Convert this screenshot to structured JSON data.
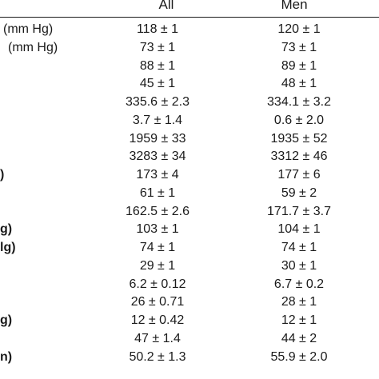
{
  "table": {
    "columns": {
      "all": "All",
      "men": "Men"
    },
    "rows": [
      {
        "label": "(mm Hg)",
        "label_indent": 4,
        "all": "118 ± 1",
        "men": "120 ± 1"
      },
      {
        "label": "(mm Hg)",
        "label_indent": 10,
        "all": "73 ± 1",
        "men": "73 ± 1"
      },
      {
        "label": "",
        "label_indent": 0,
        "all": "88 ± 1",
        "men": "89 ± 1"
      },
      {
        "label": "",
        "label_indent": 0,
        "all": "45 ± 1",
        "men": "48 ± 1"
      },
      {
        "label": "",
        "label_indent": 0,
        "all": "335.6 ± 2.3",
        "men": "334.1 ± 3.2"
      },
      {
        "label": "",
        "label_indent": 0,
        "all": "3.7 ± 1.4",
        "men": "0.6 ± 2.0"
      },
      {
        "label": "",
        "label_indent": 0,
        "all": "1959 ± 33",
        "men": "1935 ± 52"
      },
      {
        "label": "",
        "label_indent": 0,
        "all": "3283 ± 34",
        "men": "3312 ± 46"
      },
      {
        "label": ")",
        "label_indent": 0,
        "all": "173 ± 4",
        "men": "177 ± 6"
      },
      {
        "label": "",
        "label_indent": 0,
        "all": "61 ± 1",
        "men": "59 ± 2"
      },
      {
        "label": "",
        "label_indent": 0,
        "all": "162.5 ± 2.6",
        "men": "171.7 ± 3.7"
      },
      {
        "label": "g)",
        "label_indent": 0,
        "all": "103 ± 1",
        "men": "104 ± 1"
      },
      {
        "label": "lg)",
        "label_indent": 0,
        "all": "74 ± 1",
        "men": "74 ± 1"
      },
      {
        "label": "",
        "label_indent": 0,
        "all": "29 ± 1",
        "men": "30 ± 1"
      },
      {
        "label": "",
        "label_indent": 0,
        "all": "6.2 ± 0.12",
        "men": "6.7 ± 0.2"
      },
      {
        "label": "",
        "label_indent": 0,
        "all": "26 ± 0.71",
        "men": "28 ± 1"
      },
      {
        "label": "g)",
        "label_indent": 0,
        "all": "12 ± 0.42",
        "men": "12 ± 1"
      },
      {
        "label": "",
        "label_indent": 0,
        "all": "47 ± 1.4",
        "men": "44 ± 2"
      },
      {
        "label": "n)",
        "label_indent": 0,
        "all": "50.2 ± 1.3",
        "men": "55.9 ± 2.0"
      }
    ]
  }
}
